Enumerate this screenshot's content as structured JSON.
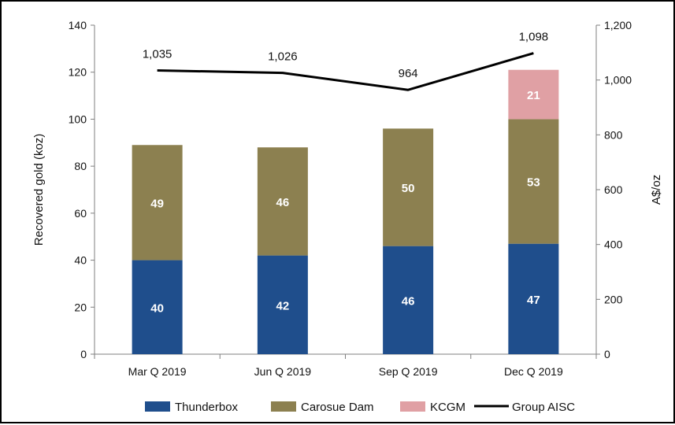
{
  "chart_data": {
    "type": "bar",
    "stacked": true,
    "categories": [
      "Mar Q 2019",
      "Jun Q 2019",
      "Sep Q 2019",
      "Dec Q 2019"
    ],
    "series": [
      {
        "name": "Thunderbox",
        "values": [
          40,
          42,
          46,
          47
        ],
        "color": "#1f4e8c",
        "label_color": "#ffffff"
      },
      {
        "name": "Carosue Dam",
        "values": [
          49,
          46,
          50,
          53
        ],
        "color": "#8c8050",
        "label_color": "#ffffff"
      },
      {
        "name": "KCGM",
        "values": [
          0,
          0,
          0,
          21
        ],
        "color": "#e0a0a4",
        "label_color": "#ffffff"
      }
    ],
    "line_series": {
      "name": "Group AISC",
      "values": [
        1035,
        1026,
        964,
        1098
      ],
      "labels": [
        "1,035",
        "1,026",
        "964",
        "1,098"
      ],
      "axis": "right",
      "color": "#000000"
    },
    "ylabel": "Recovered gold (koz)",
    "y2label": "A$/oz",
    "ylim": [
      0,
      140
    ],
    "y2lim": [
      0,
      1200
    ],
    "yticks": [
      "0",
      "20",
      "40",
      "60",
      "80",
      "100",
      "120",
      "140"
    ],
    "y2ticks": [
      "0",
      "200",
      "400",
      "600",
      "800",
      "1,000",
      "1,200"
    ],
    "legend": {
      "position": "bottom",
      "items": [
        "Thunderbox",
        "Carosue Dam",
        "KCGM",
        "Group AISC"
      ]
    },
    "grid": false
  }
}
